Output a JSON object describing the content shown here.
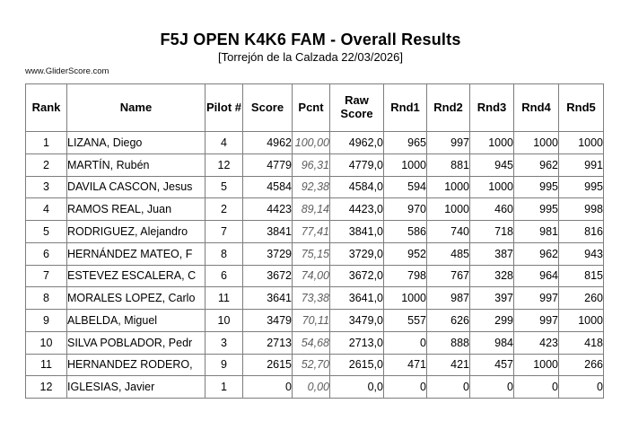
{
  "header": {
    "title": "F5J OPEN K4K6 FAM - Overall Results",
    "subtitle": "[Torrejón de la Calzada 22/03/2026]",
    "website": "www.GliderScore.com"
  },
  "table": {
    "columns": [
      "Rank",
      "Name",
      "Pilot #",
      "Score",
      "Pcnt",
      "Raw Score",
      "Rnd1",
      "Rnd2",
      "Rnd3",
      "Rnd4",
      "Rnd5"
    ],
    "rows": [
      {
        "rank": "1",
        "name": "LIZANA, Diego",
        "pilot": "4",
        "score": "4962",
        "pcnt": "100,00",
        "raw": "4962,0",
        "rnd1": "965",
        "rnd2": "997",
        "rnd3": "1000",
        "rnd4": "1000",
        "rnd5": "1000"
      },
      {
        "rank": "2",
        "name": "MARTÍN, Rubén",
        "pilot": "12",
        "score": "4779",
        "pcnt": "96,31",
        "raw": "4779,0",
        "rnd1": "1000",
        "rnd2": "881",
        "rnd3": "945",
        "rnd4": "962",
        "rnd5": "991"
      },
      {
        "rank": "3",
        "name": "DAVILA CASCON, Jesus",
        "pilot": "5",
        "score": "4584",
        "pcnt": "92,38",
        "raw": "4584,0",
        "rnd1": "594",
        "rnd2": "1000",
        "rnd3": "1000",
        "rnd4": "995",
        "rnd5": "995"
      },
      {
        "rank": "4",
        "name": "RAMOS REAL, Juan",
        "pilot": "2",
        "score": "4423",
        "pcnt": "89,14",
        "raw": "4423,0",
        "rnd1": "970",
        "rnd2": "1000",
        "rnd3": "460",
        "rnd4": "995",
        "rnd5": "998"
      },
      {
        "rank": "5",
        "name": "RODRIGUEZ, Alejandro",
        "pilot": "7",
        "score": "3841",
        "pcnt": "77,41",
        "raw": "3841,0",
        "rnd1": "586",
        "rnd2": "740",
        "rnd3": "718",
        "rnd4": "981",
        "rnd5": "816"
      },
      {
        "rank": "6",
        "name": "HERNÁNDEZ MATEO, F",
        "pilot": "8",
        "score": "3729",
        "pcnt": "75,15",
        "raw": "3729,0",
        "rnd1": "952",
        "rnd2": "485",
        "rnd3": "387",
        "rnd4": "962",
        "rnd5": "943"
      },
      {
        "rank": "7",
        "name": "ESTEVEZ ESCALERA, C",
        "pilot": "6",
        "score": "3672",
        "pcnt": "74,00",
        "raw": "3672,0",
        "rnd1": "798",
        "rnd2": "767",
        "rnd3": "328",
        "rnd4": "964",
        "rnd5": "815"
      },
      {
        "rank": "8",
        "name": "MORALES LOPEZ, Carlo",
        "pilot": "11",
        "score": "3641",
        "pcnt": "73,38",
        "raw": "3641,0",
        "rnd1": "1000",
        "rnd2": "987",
        "rnd3": "397",
        "rnd4": "997",
        "rnd5": "260"
      },
      {
        "rank": "9",
        "name": "ALBELDA, Miguel",
        "pilot": "10",
        "score": "3479",
        "pcnt": "70,11",
        "raw": "3479,0",
        "rnd1": "557",
        "rnd2": "626",
        "rnd3": "299",
        "rnd4": "997",
        "rnd5": "1000"
      },
      {
        "rank": "10",
        "name": "SILVA POBLADOR, Pedr",
        "pilot": "3",
        "score": "2713",
        "pcnt": "54,68",
        "raw": "2713,0",
        "rnd1": "0",
        "rnd2": "888",
        "rnd3": "984",
        "rnd4": "423",
        "rnd5": "418"
      },
      {
        "rank": "11",
        "name": "HERNANDEZ RODERO,",
        "pilot": "9",
        "score": "2615",
        "pcnt": "52,70",
        "raw": "2615,0",
        "rnd1": "471",
        "rnd2": "421",
        "rnd3": "457",
        "rnd4": "1000",
        "rnd5": "266"
      },
      {
        "rank": "12",
        "name": "IGLESIAS, Javier",
        "pilot": "1",
        "score": "0",
        "pcnt": "0,00",
        "raw": "0,0",
        "rnd1": "0",
        "rnd2": "0",
        "rnd3": "0",
        "rnd4": "0",
        "rnd5": "0"
      }
    ]
  }
}
